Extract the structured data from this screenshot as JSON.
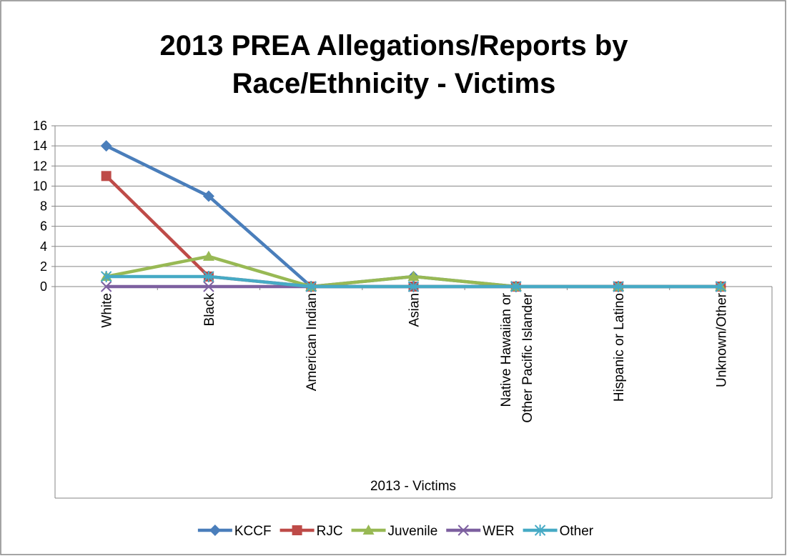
{
  "chart_data": {
    "type": "line",
    "title": "2013 PREA Allegations/Reports by Race/Ethnicity - Victims",
    "x_label": "2013 - Victims",
    "categories": [
      "White",
      "Black",
      "American Indian",
      "Asian",
      "Native Hawaiian or Other Pacific Islander",
      "Hispanic or Latino",
      "Unknown/Other"
    ],
    "series": [
      {
        "name": "KCCF",
        "color": "#4a7ebb",
        "marker": "diamond",
        "values": [
          14,
          9,
          0,
          1,
          0,
          0,
          0
        ]
      },
      {
        "name": "RJC",
        "color": "#be4b48",
        "marker": "square",
        "values": [
          11,
          1,
          0,
          0,
          0,
          0,
          0
        ]
      },
      {
        "name": "Juvenile",
        "color": "#98b954",
        "marker": "triangle",
        "values": [
          1,
          3,
          0,
          1,
          0,
          0,
          0
        ]
      },
      {
        "name": "WER",
        "color": "#7d60a0",
        "marker": "x",
        "values": [
          0,
          0,
          0,
          0,
          0,
          0,
          0
        ]
      },
      {
        "name": "Other",
        "color": "#46aac5",
        "marker": "star",
        "values": [
          1,
          1,
          0,
          0,
          0,
          0,
          0
        ]
      }
    ],
    "ylim": [
      0,
      16
    ],
    "yticks": [
      0,
      2,
      4,
      6,
      8,
      10,
      12,
      14,
      16
    ],
    "grid": true,
    "legend": "bottom"
  }
}
